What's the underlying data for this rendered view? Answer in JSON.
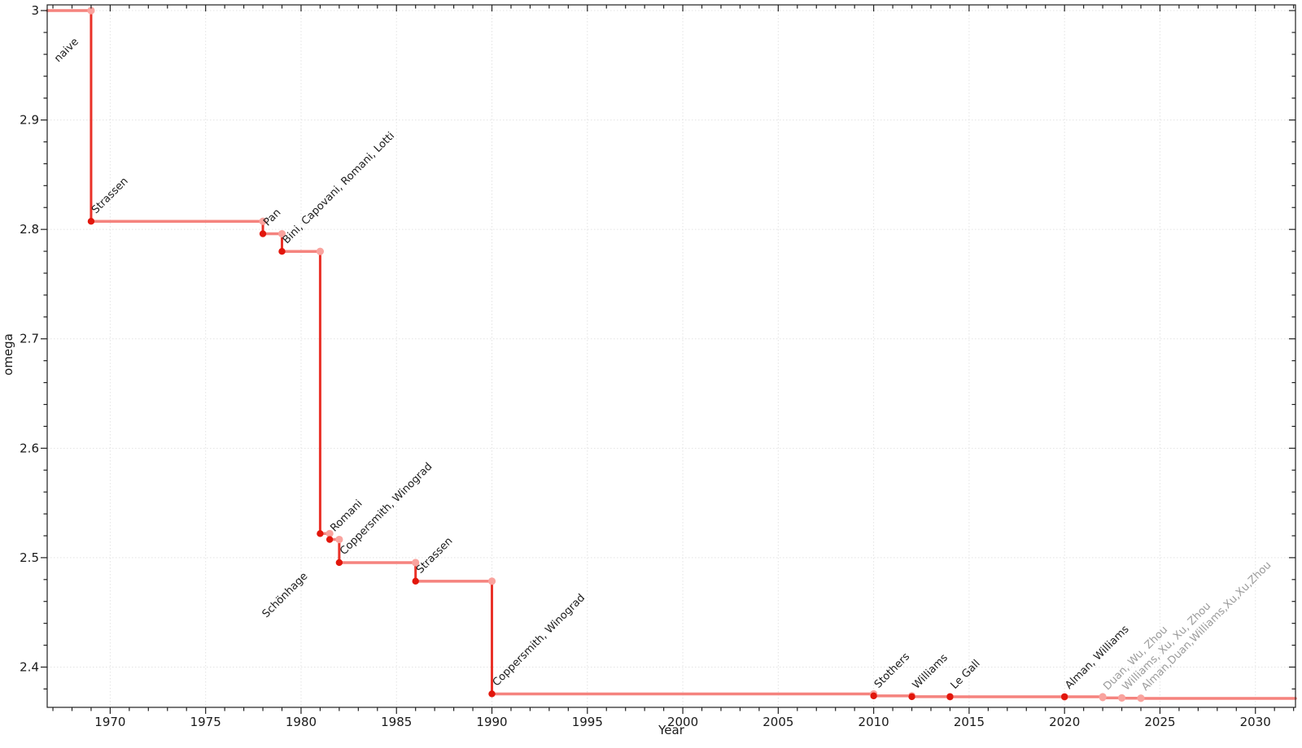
{
  "chart_data": {
    "type": "line",
    "subtype": "step-post-with-markers",
    "title": "",
    "xlabel": "Year",
    "ylabel": "omega",
    "xlim": [
      1966.7,
      2032.1
    ],
    "ylim": [
      2.3632,
      3.0052
    ],
    "x_major_ticks": [
      1970,
      1975,
      1980,
      1985,
      1990,
      1995,
      2000,
      2005,
      2010,
      2015,
      2020,
      2025,
      2030
    ],
    "x_tick_labels": [
      "1970",
      "1975",
      "1980",
      "1985",
      "1990",
      "1995",
      "2000",
      "2005",
      "2010",
      "2015",
      "2020",
      "2025",
      "2030"
    ],
    "x_minor_step": 1,
    "y_major_ticks": [
      2.4,
      2.5,
      2.6,
      2.7,
      2.8,
      2.9,
      3
    ],
    "y_tick_labels": [
      "2.4",
      "2.5",
      "2.6",
      "2.7",
      "2.8",
      "2.9",
      "3"
    ],
    "y_minor_step": 0.02,
    "grid": {
      "which": "major",
      "style": "dotted",
      "color": "#e3e3e3"
    },
    "legend": "none",
    "colors": {
      "plateau_line": "#f5837e",
      "drop_line": "#e93128",
      "point_strong": "#e2160b",
      "point_light": "#f9a39e",
      "label_text": "#1c1c1c",
      "label_muted": "#9b9b9b",
      "axis_text": "#1a1a1a",
      "spine": "#202020"
    },
    "initial": {
      "label": "naive",
      "omega": 3
    },
    "events": [
      {
        "year": 1969,
        "omega": 2.8074,
        "label": "Strassen",
        "muted": false
      },
      {
        "year": 1978,
        "omega": 2.796,
        "label": "Pan",
        "muted": false
      },
      {
        "year": 1979,
        "omega": 2.7799,
        "label": "Bini, Capovani, Romani, Lotti",
        "muted": false
      },
      {
        "year": 1981,
        "omega": 2.522,
        "label": "Schönhage",
        "muted": false
      },
      {
        "year": 1981.5,
        "omega": 2.5166,
        "label": "Romani",
        "muted": false
      },
      {
        "year": 1982,
        "omega": 2.4955,
        "label": "Coppersmith, Winograd",
        "muted": false
      },
      {
        "year": 1986,
        "omega": 2.4785,
        "label": "Strassen",
        "muted": false
      },
      {
        "year": 1990,
        "omega": 2.3755,
        "label": "Coppersmith, Winograd",
        "muted": false
      },
      {
        "year": 2010,
        "omega": 2.3737,
        "label": "Stothers",
        "muted": false
      },
      {
        "year": 2012,
        "omega": 2.37293,
        "label": "Williams",
        "muted": false
      },
      {
        "year": 2014,
        "omega": 2.37286,
        "label": "Le Gall",
        "muted": false
      },
      {
        "year": 2020,
        "omega": 2.37285,
        "label": "Alman, Williams",
        "muted": false
      },
      {
        "year": 2022,
        "omega": 2.37188,
        "label": "Duan, Wu, Zhou",
        "muted": true
      },
      {
        "year": 2023,
        "omega": 2.37156,
        "label": "Williams, Xu, Xu, Zhou",
        "muted": true
      },
      {
        "year": 2024,
        "omega": 2.37134,
        "label": "Alman,Duan,Williams,Xu,Xu,Zhou",
        "muted": true
      }
    ]
  }
}
